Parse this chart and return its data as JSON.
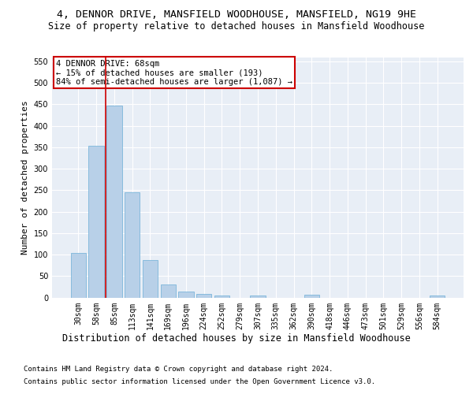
{
  "title": "4, DENNOR DRIVE, MANSFIELD WOODHOUSE, MANSFIELD, NG19 9HE",
  "subtitle": "Size of property relative to detached houses in Mansfield Woodhouse",
  "xlabel": "Distribution of detached houses by size in Mansfield Woodhouse",
  "ylabel": "Number of detached properties",
  "footnote1": "Contains HM Land Registry data © Crown copyright and database right 2024.",
  "footnote2": "Contains public sector information licensed under the Open Government Licence v3.0.",
  "annotation_line1": "4 DENNOR DRIVE: 68sqm",
  "annotation_line2": "← 15% of detached houses are smaller (193)",
  "annotation_line3": "84% of semi-detached houses are larger (1,087) →",
  "bar_categories": [
    "30sqm",
    "58sqm",
    "85sqm",
    "113sqm",
    "141sqm",
    "169sqm",
    "196sqm",
    "224sqm",
    "252sqm",
    "279sqm",
    "307sqm",
    "335sqm",
    "362sqm",
    "390sqm",
    "418sqm",
    "446sqm",
    "473sqm",
    "501sqm",
    "529sqm",
    "556sqm",
    "584sqm"
  ],
  "bar_values": [
    103,
    354,
    447,
    246,
    88,
    30,
    13,
    9,
    5,
    0,
    5,
    0,
    0,
    6,
    0,
    0,
    0,
    0,
    0,
    0,
    5
  ],
  "bar_color": "#b8d0e8",
  "bar_edge_color": "#6baed6",
  "vline_color": "#cc0000",
  "vline_x": 1.5,
  "ylim": [
    0,
    560
  ],
  "yticks": [
    0,
    50,
    100,
    150,
    200,
    250,
    300,
    350,
    400,
    450,
    500,
    550
  ],
  "annotation_box_color": "#cc0000",
  "background_color": "#e8eef6",
  "grid_color": "#ffffff",
  "title_fontsize": 9.5,
  "subtitle_fontsize": 8.5,
  "ylabel_fontsize": 8,
  "xlabel_fontsize": 8.5,
  "tick_fontsize": 7,
  "annotation_fontsize": 7.5,
  "footnote_fontsize": 6.5
}
